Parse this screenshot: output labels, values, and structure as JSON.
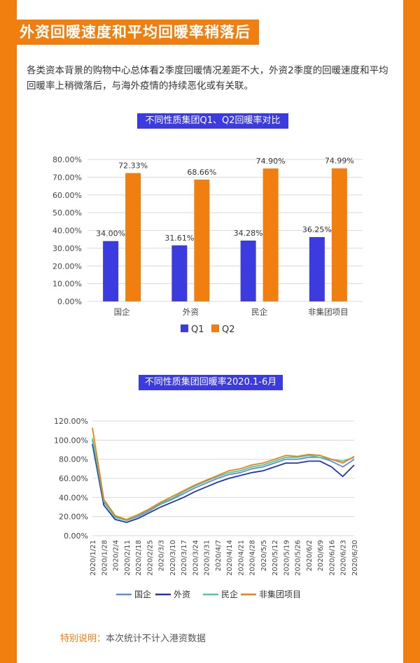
{
  "heading": "外资回暖速度和平均回暖率稍落后",
  "intro": "各类资本背景的购物中心总体看2季度回暖情况差距不大，外资2季度的回暖速度和平均回暖率上稍微落后，与海外疫情的持续恶化或有关联。",
  "note": {
    "label": "特别说明：",
    "text": "本次统计不计入港资数据"
  },
  "colors": {
    "orange": "#f07f0f",
    "blue": "#3b3be0",
    "q1": "#3b3be0",
    "q2": "#f07f0f",
    "guoqi": "#5b8fd9",
    "waizi": "#2233bb",
    "minqi": "#4cc99a",
    "fjt": "#f07f0f"
  },
  "chart_data": [
    {
      "type": "bar",
      "title": "不同性质集团Q1、Q2回暖率对比",
      "categories": [
        "国企",
        "外资",
        "民企",
        "非集团项目"
      ],
      "series": [
        {
          "name": "Q1",
          "values": [
            34.0,
            31.61,
            34.28,
            36.25
          ],
          "labels": [
            "34.00%",
            "31.61%",
            "34.28%",
            "36.25%"
          ]
        },
        {
          "name": "Q2",
          "values": [
            72.33,
            68.66,
            74.9,
            74.99
          ],
          "labels": [
            "72.33%",
            "68.66%",
            "74.90%",
            "74.99%"
          ]
        }
      ],
      "ylim": [
        0,
        80
      ],
      "yticks": [
        "0.00%",
        "10.00%",
        "20.00%",
        "30.00%",
        "40.00%",
        "50.00%",
        "60.00%",
        "70.00%",
        "80.00%"
      ],
      "grid": true,
      "legend": "bottom"
    },
    {
      "type": "line",
      "title": "不同性质集团回暖率2020.1-6月",
      "x": [
        "2020/1/21",
        "2020/1/28",
        "2020/2/4",
        "2020/2/11",
        "2020/2/18",
        "2020/2/25",
        "2020/3/3",
        "2020/3/10",
        "2020/3/17",
        "2020/3/24",
        "2020/3/31",
        "2020/4/7",
        "2020/4/14",
        "2020/4/21",
        "2020/4/28",
        "2020/5/5",
        "2020/5/12",
        "2020/5/19",
        "2020/5/26",
        "2020/6/2",
        "2020/6/9",
        "2020/6/16",
        "2020/6/23",
        "2020/6/30"
      ],
      "series": [
        {
          "name": "国企",
          "values": [
            100,
            35,
            20,
            16,
            20,
            26,
            33,
            38,
            44,
            50,
            55,
            60,
            64,
            66,
            70,
            72,
            76,
            80,
            80,
            82,
            82,
            78,
            72,
            80
          ]
        },
        {
          "name": "外资",
          "values": [
            96,
            32,
            17,
            14,
            18,
            24,
            30,
            35,
            40,
            46,
            51,
            56,
            60,
            63,
            66,
            68,
            72,
            76,
            76,
            78,
            78,
            72,
            62,
            74
          ]
        },
        {
          "name": "民企",
          "values": [
            102,
            36,
            19,
            16,
            21,
            27,
            34,
            39,
            46,
            52,
            57,
            62,
            66,
            68,
            72,
            74,
            78,
            82,
            82,
            84,
            82,
            80,
            78,
            82
          ]
        },
        {
          "name": "非集团项目",
          "values": [
            113,
            38,
            21,
            17,
            22,
            28,
            35,
            41,
            47,
            53,
            58,
            63,
            68,
            70,
            74,
            76,
            80,
            84,
            83,
            85,
            84,
            80,
            76,
            83
          ]
        }
      ],
      "ylim": [
        0,
        120
      ],
      "yticks": [
        "0.00%",
        "20.00%",
        "40.00%",
        "60.00%",
        "80.00%",
        "100.00%",
        "120.00%"
      ],
      "grid": true,
      "legend": "bottom"
    }
  ]
}
